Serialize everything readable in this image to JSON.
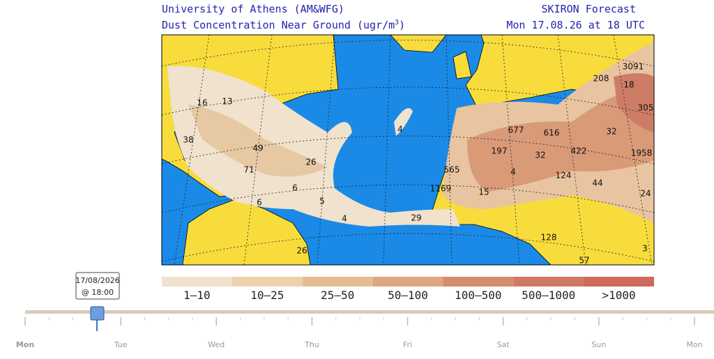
{
  "header": {
    "institution": "University of Athens (AM&WFG)",
    "product_title": "Dust Concentration Near Ground (ugr/m",
    "product_title_sup": "3",
    "product_title_end": ")",
    "model": "SKIRON Forecast",
    "valid_time": "Mon 17.08.26 at 18 UTC"
  },
  "map": {
    "labels": [
      "13",
      "16",
      "38",
      "49",
      "26",
      "71",
      "6",
      "6",
      "5",
      "4",
      "29",
      "4",
      "565",
      "1169",
      "15",
      "197",
      "4",
      "677",
      "616",
      "32",
      "422",
      "124",
      "44",
      "32",
      "208",
      "3091",
      "18",
      "305",
      "1958",
      "24",
      "128",
      "26",
      "3",
      "57"
    ]
  },
  "legend": {
    "items": [
      {
        "label": "1–10",
        "color": "#f0e2cc"
      },
      {
        "label": "10–25",
        "color": "#ecd3ae"
      },
      {
        "label": "25–50",
        "color": "#e6bd92"
      },
      {
        "label": "50–100",
        "color": "#dea681"
      },
      {
        "label": "100–500",
        "color": "#d68d6c"
      },
      {
        "label": "500–1000",
        "color": "#d07964"
      },
      {
        "label": ">1000",
        "color": "#cd6a5a"
      }
    ]
  },
  "slider": {
    "date": "17/08/2026",
    "time": "@ 18:00",
    "days": [
      "Mon",
      "Tue",
      "Wed",
      "Thu",
      "Fri",
      "Sat",
      "Sun",
      "Mon"
    ]
  }
}
